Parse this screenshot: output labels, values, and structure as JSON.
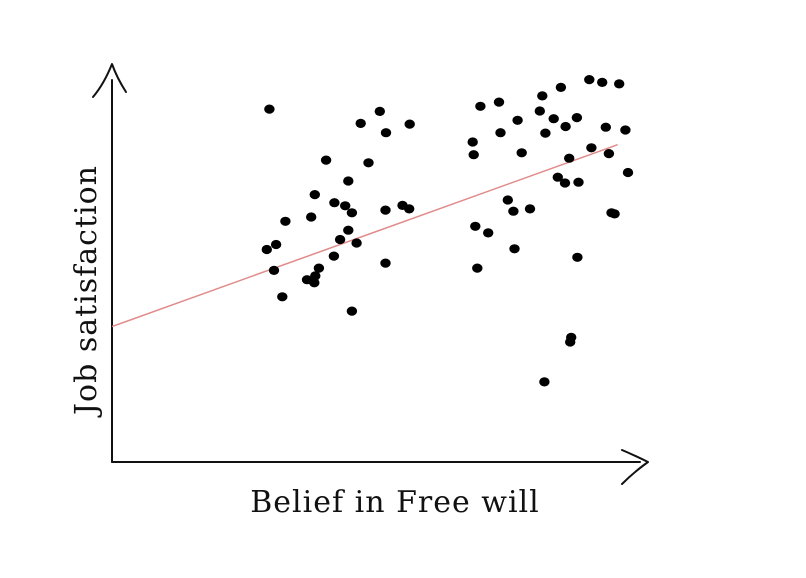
{
  "chart_data": {
    "type": "scatter",
    "title": "",
    "xlabel": "Belief in Free will",
    "ylabel": "Job satisfaction",
    "xlim": [
      0,
      100
    ],
    "ylim": [
      0,
      100
    ],
    "grid": false,
    "legend": "none",
    "colors": {
      "points": "#000000",
      "trend": "#e08a8a",
      "axes": "#111111"
    },
    "points": [
      [
        30.5,
        91.2
      ],
      [
        30.0,
        54.9
      ],
      [
        31.4,
        49.5
      ],
      [
        33.0,
        42.7
      ],
      [
        33.6,
        62.2
      ],
      [
        31.8,
        56.2
      ],
      [
        37.8,
        47.1
      ],
      [
        39.4,
        48.1
      ],
      [
        40.1,
        50.1
      ],
      [
        39.2,
        46.3
      ],
      [
        38.6,
        63.3
      ],
      [
        39.3,
        69.1
      ],
      [
        41.5,
        78.0
      ],
      [
        44.2,
        57.5
      ],
      [
        43.1,
        67.0
      ],
      [
        45.8,
        72.6
      ],
      [
        45.2,
        66.2
      ],
      [
        45.8,
        59.9
      ],
      [
        46.5,
        39.0
      ],
      [
        47.4,
        56.6
      ],
      [
        48.2,
        87.5
      ],
      [
        49.7,
        77.3
      ],
      [
        51.9,
        90.6
      ],
      [
        53.1,
        85.1
      ],
      [
        53.0,
        51.4
      ],
      [
        53.0,
        65.1
      ],
      [
        56.3,
        66.3
      ],
      [
        57.6,
        65.4
      ],
      [
        57.7,
        87.3
      ],
      [
        71.4,
        91.9
      ],
      [
        69.9,
        82.7
      ],
      [
        70.1,
        79.4
      ],
      [
        70.8,
        50.1
      ],
      [
        72.9,
        59.2
      ],
      [
        70.4,
        60.9
      ],
      [
        75.3,
        85.1
      ],
      [
        75.0,
        93.0
      ],
      [
        78.6,
        88.3
      ],
      [
        78.0,
        55.1
      ],
      [
        77.8,
        64.8
      ],
      [
        76.7,
        67.7
      ],
      [
        79.4,
        79.9
      ],
      [
        81.0,
        65.4
      ],
      [
        82.9,
        90.7
      ],
      [
        83.4,
        94.6
      ],
      [
        86.4,
        73.6
      ],
      [
        84.0,
        85.0
      ],
      [
        85.6,
        88.7
      ],
      [
        87.0,
        96.8
      ],
      [
        87.9,
        86.7
      ],
      [
        87.8,
        72.1
      ],
      [
        88.6,
        78.5
      ],
      [
        92.5,
        98.8
      ],
      [
        90.1,
        89.0
      ],
      [
        90.4,
        72.3
      ],
      [
        90.2,
        52.9
      ],
      [
        89.0,
        32.2
      ],
      [
        88.8,
        31.0
      ],
      [
        83.8,
        20.7
      ],
      [
        92.9,
        81.2
      ],
      [
        95.0,
        98.1
      ],
      [
        95.7,
        86.5
      ],
      [
        96.3,
        79.7
      ],
      [
        97.4,
        64.1
      ],
      [
        96.8,
        64.4
      ],
      [
        98.3,
        97.7
      ],
      [
        99.5,
        85.8
      ],
      [
        100.0,
        74.8
      ],
      [
        43.0,
        53.2
      ],
      [
        46.5,
        64.4
      ]
    ],
    "trendline": {
      "x": [
        0,
        98
      ],
      "y": [
        35,
        82
      ]
    }
  }
}
